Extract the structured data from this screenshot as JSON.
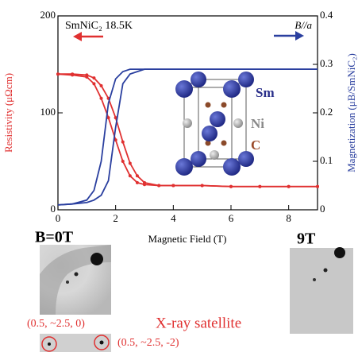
{
  "chart_data": {
    "type": "line",
    "title": "SmNiC₂ 18.5K",
    "subtitle": "B//a",
    "x_label": "Magnetic Field (T)",
    "y_label": "Resistivity (μΩcm)",
    "y2_label": "Magnetization (μB/SmNiC₂)",
    "xlim": [
      0,
      9
    ],
    "xticks": [
      0,
      2,
      4,
      6,
      8
    ],
    "ylim": [
      0,
      200
    ],
    "yticks": [
      0,
      100,
      200
    ],
    "y2lim": [
      0,
      0.4
    ],
    "y2ticks": [
      0,
      0.1,
      0.2,
      0.3,
      0.4
    ],
    "x": [
      0,
      0.5,
      1,
      1.25,
      1.5,
      1.75,
      2,
      2.25,
      2.5,
      2.75,
      3,
      3.5,
      4,
      5,
      6,
      7,
      8,
      9
    ],
    "series": [
      {
        "color": "#e03030",
        "values": [
          140,
          139,
          137,
          130,
          115,
          95,
          72,
          50,
          35,
          28,
          26,
          25,
          25,
          25,
          24,
          24,
          24,
          24
        ]
      },
      {
        "color": "#e03030",
        "values": [
          140,
          140,
          139,
          136,
          128,
          115,
          95,
          70,
          48,
          35,
          28,
          25,
          25,
          25,
          24,
          24,
          24,
          24
        ]
      },
      {
        "color": "#2a3f9f",
        "axis": "y2",
        "values": [
          0.01,
          0.012,
          0.02,
          0.04,
          0.1,
          0.22,
          0.27,
          0.285,
          0.29,
          0.29,
          0.29,
          0.29,
          0.29,
          0.29,
          0.29,
          0.29,
          0.29,
          0.29
        ]
      },
      {
        "color": "#2a3f9f",
        "axis": "y2",
        "values": [
          0.01,
          0.012,
          0.015,
          0.02,
          0.03,
          0.06,
          0.17,
          0.26,
          0.28,
          0.285,
          0.29,
          0.29,
          0.29,
          0.29,
          0.29,
          0.29,
          0.29,
          0.29
        ]
      }
    ]
  },
  "inset": {
    "labels": [
      "Sm",
      "Ni",
      "C"
    ]
  },
  "panels": {
    "left_label": "B=0T",
    "right_label": "9T",
    "satellite_label": "X-ray satellite",
    "spot_1": "(0.5, ~2.5, 0)",
    "spot_2": "(0.5, ~2.5, -2)"
  }
}
